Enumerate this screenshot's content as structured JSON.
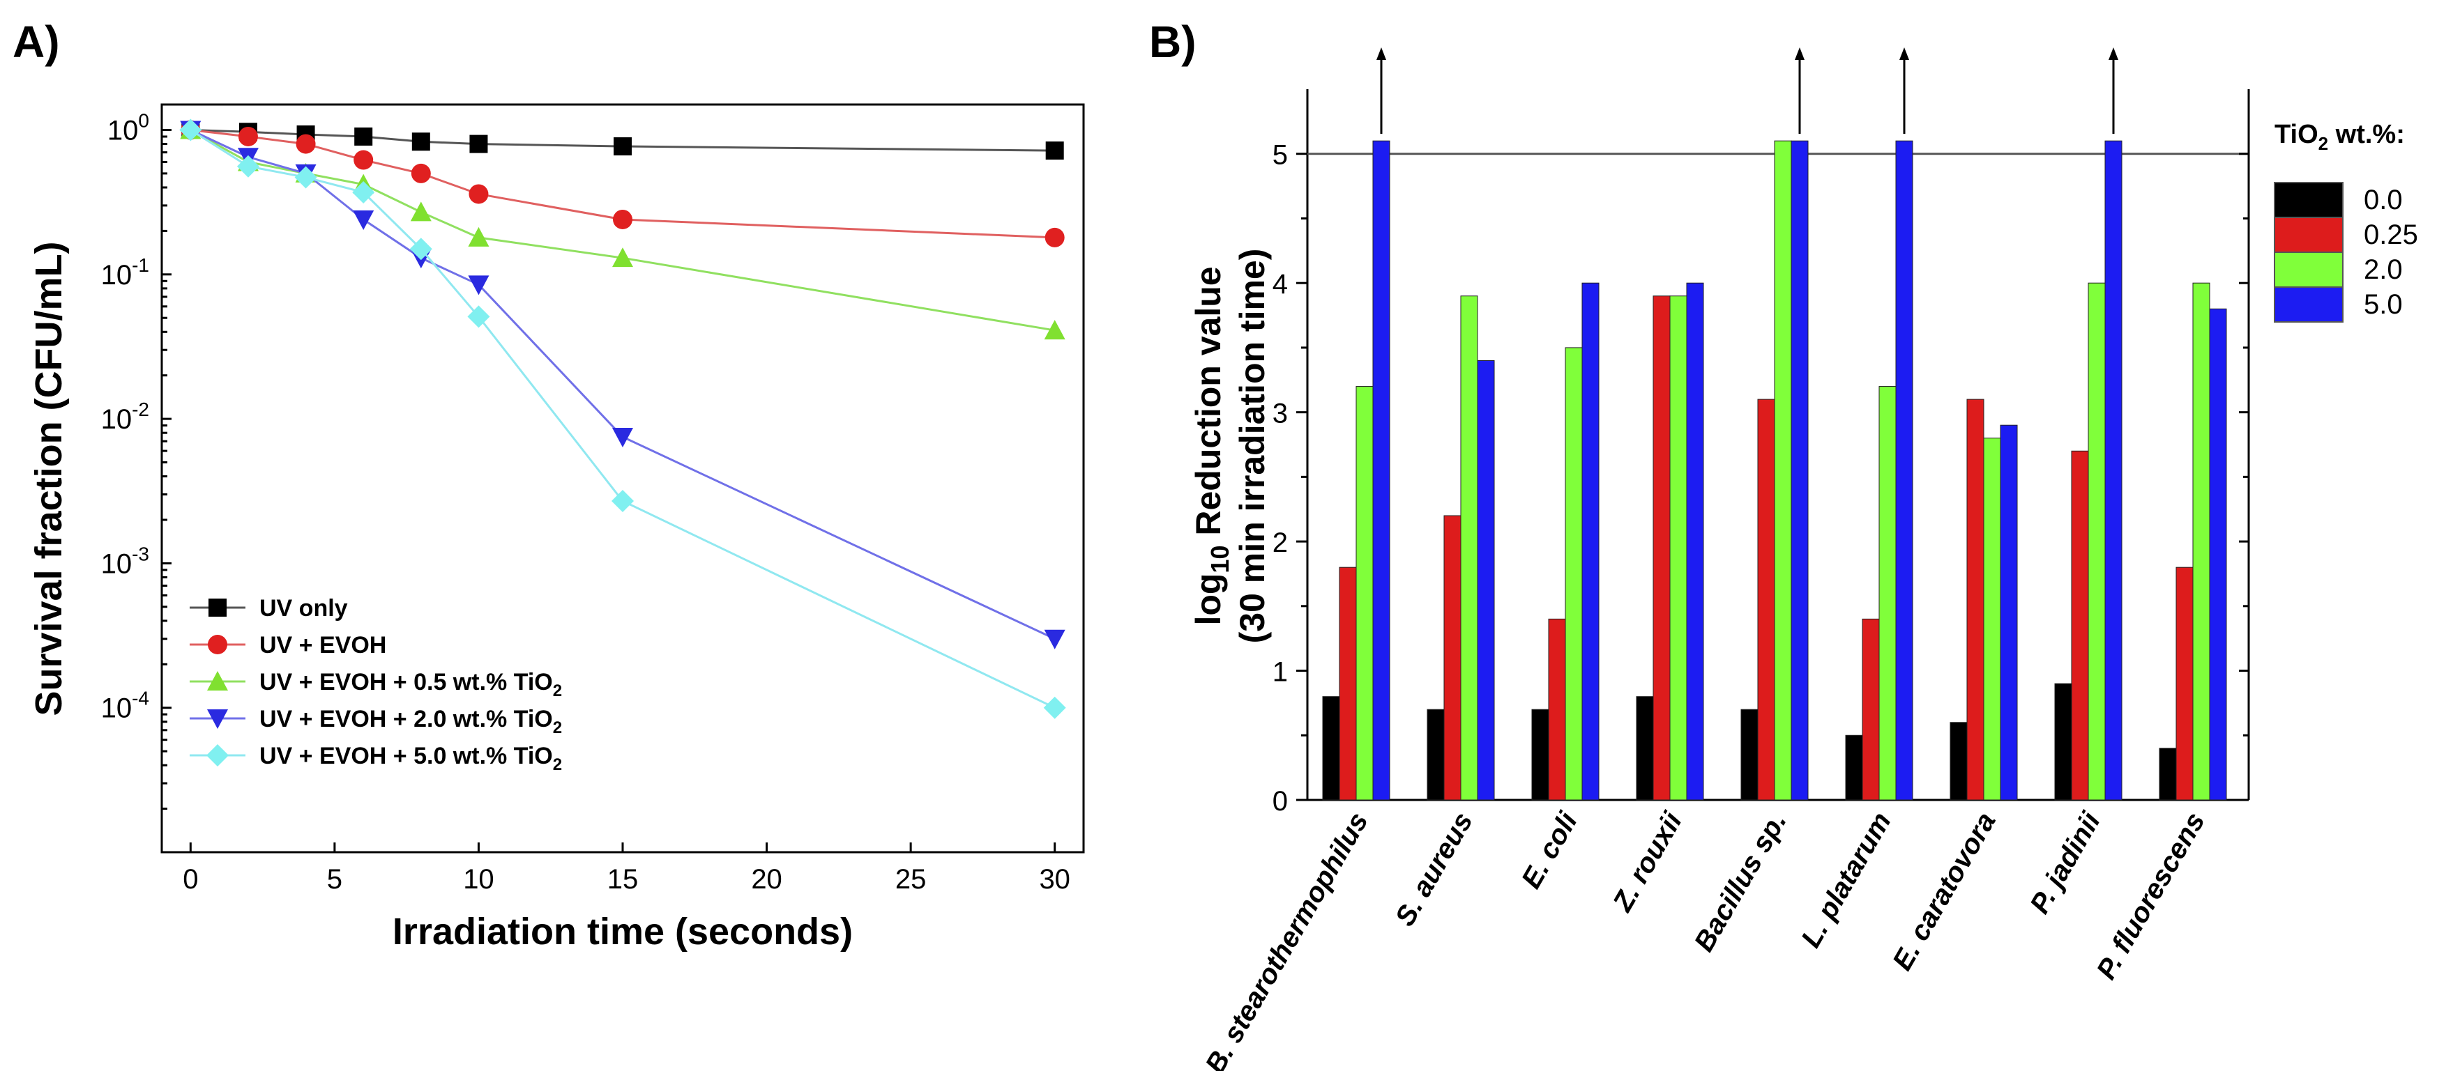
{
  "chart_data": [
    {
      "panel": "A)",
      "type": "line",
      "xlabel": "Irradiation time (seconds)",
      "ylabel": "Survival fraction (CFU/mL)",
      "yscale": "log",
      "xlim": [
        -1,
        31
      ],
      "ylim": [
        1e-05,
        1.5
      ],
      "xticks": [
        0,
        5,
        10,
        15,
        20,
        25,
        30
      ],
      "yticks": [
        {
          "value": 1,
          "mant": "10",
          "exp": "0"
        },
        {
          "value": 0.1,
          "mant": "10",
          "exp": "-1"
        },
        {
          "value": 0.01,
          "mant": "10",
          "exp": "-2"
        },
        {
          "value": 0.001,
          "mant": "10",
          "exp": "-3"
        },
        {
          "value": 0.0001,
          "mant": "10",
          "exp": "-4"
        }
      ],
      "legend_position": "bottom-left",
      "series": [
        {
          "name": "UV only",
          "label": "UV only",
          "sub": "",
          "color": "#000000",
          "line": "#555555",
          "marker": "square",
          "x": [
            0,
            2,
            4,
            6,
            8,
            10,
            15,
            30
          ],
          "y": [
            1.0,
            0.97,
            0.93,
            0.9,
            0.83,
            0.8,
            0.77,
            0.72
          ]
        },
        {
          "name": "UV + EVOH",
          "label": "UV + EVOH",
          "sub": "",
          "color": "#e02020",
          "line": "#e06060",
          "marker": "circle",
          "x": [
            0,
            2,
            4,
            6,
            8,
            10,
            15,
            30
          ],
          "y": [
            1.0,
            0.9,
            0.8,
            0.62,
            0.5,
            0.36,
            0.24,
            0.18
          ]
        },
        {
          "name": "UV + EVOH + 0.5 wt.% TiO2",
          "label": "UV + EVOH + 0.5 wt.% TiO",
          "sub": "2",
          "color": "#80e030",
          "line": "#90e060",
          "marker": "triangle-up",
          "x": [
            0,
            2,
            4,
            6,
            8,
            10,
            15,
            30
          ],
          "y": [
            1.0,
            0.6,
            0.5,
            0.42,
            0.27,
            0.18,
            0.13,
            0.041
          ]
        },
        {
          "name": "UV + EVOH + 2.0 wt.% TiO2",
          "label": "UV + EVOH + 2.0 wt.% TiO",
          "sub": "2",
          "color": "#2a2ae0",
          "line": "#7070e8",
          "marker": "triangle-down",
          "x": [
            0,
            2,
            4,
            6,
            8,
            10,
            15,
            30
          ],
          "y": [
            1.0,
            0.65,
            0.5,
            0.24,
            0.13,
            0.085,
            0.0075,
            0.0003
          ]
        },
        {
          "name": "UV + EVOH + 5.0 wt.% TiO2",
          "label": "UV + EVOH + 5.0 wt.% TiO",
          "sub": "2",
          "color": "#80f0f0",
          "line": "#90e8f0",
          "marker": "diamond",
          "x": [
            0,
            2,
            4,
            6,
            8,
            10,
            15,
            30
          ],
          "y": [
            1.0,
            0.56,
            0.47,
            0.37,
            0.15,
            0.051,
            0.0027,
            0.0001
          ]
        }
      ]
    },
    {
      "panel": "B)",
      "type": "bar",
      "ylabel_line1_pre": "log",
      "ylabel_line1_sub": "10",
      "ylabel_line1_post": " Reduction value",
      "ylabel_line2": "(30 min irradiation time)",
      "ylim": [
        0,
        5.5
      ],
      "yticks": [
        0,
        1,
        2,
        3,
        4,
        5
      ],
      "reference_line": 5,
      "legend_title_pre": "TiO",
      "legend_title_sub": "2",
      "legend_title_post": " wt.%:",
      "legend_position": "right",
      "categories": [
        "B. stearothermophilus",
        "S. aureus",
        "E. coli",
        "Z. rouxii",
        "Bacillus sp.",
        "L. platarum",
        "E. caratovora",
        "P. jadinii",
        "P. fluorescens"
      ],
      "series": [
        {
          "name": "0.0",
          "color": "#000000",
          "values": [
            0.8,
            0.7,
            0.7,
            0.8,
            0.7,
            0.5,
            0.6,
            0.9,
            0.4
          ]
        },
        {
          "name": "0.25",
          "color": "#dd1c1c",
          "values": [
            1.8,
            2.2,
            1.4,
            3.9,
            3.1,
            1.4,
            3.1,
            2.7,
            1.8
          ]
        },
        {
          "name": "2.0",
          "color": "#80ff3a",
          "values": [
            3.2,
            3.9,
            3.5,
            3.9,
            5.1,
            3.2,
            2.8,
            4.0,
            4.0
          ]
        },
        {
          "name": "5.0",
          "color": "#1c1cf2",
          "values": [
            5.1,
            3.4,
            4.0,
            4.0,
            5.1,
            5.1,
            2.9,
            5.1,
            3.8
          ]
        }
      ],
      "arrows": [
        {
          "category": 0,
          "series": 3
        },
        {
          "category": 4,
          "series": 3
        },
        {
          "category": 5,
          "series": 3
        },
        {
          "category": 7,
          "series": 3
        }
      ]
    }
  ]
}
